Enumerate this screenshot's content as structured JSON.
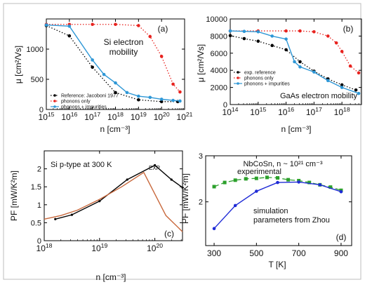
{
  "chart_data": [
    {
      "id": "a",
      "type": "line",
      "panel_label": "(a)",
      "annotation": "Si electron\nmobility",
      "xlabel": "n [cm⁻³]",
      "ylabel": "μ [cm²/Vs]",
      "xscale": "log",
      "xlim": [
        15,
        21
      ],
      "ylim": [
        0,
        1500
      ],
      "xticks": [
        15,
        16,
        17,
        18,
        19,
        20,
        21
      ],
      "xtick_labels": [
        "10^15",
        "10^16",
        "10^17",
        "10^18",
        "10^19",
        "10^20",
        "10^21"
      ],
      "yticks": [
        0,
        500,
        1000
      ],
      "ytick_labels": [
        "0",
        "500",
        "1000"
      ],
      "legend": "bottom-left",
      "series": [
        {
          "name": "Reference: Jacoboni 1977",
          "color": "#000000",
          "style": "dotted",
          "marker": "circle",
          "x": [
            15,
            16,
            17,
            18,
            19,
            20,
            20.7
          ],
          "y": [
            1390,
            1220,
            700,
            280,
            160,
            130,
            130
          ]
        },
        {
          "name": "phonons only",
          "color": "#e8231f",
          "style": "dotted",
          "marker": "circle",
          "x": [
            15,
            16,
            17,
            18,
            19,
            19.5,
            20,
            20.5,
            20.8
          ],
          "y": [
            1410,
            1410,
            1410,
            1410,
            1390,
            1210,
            880,
            420,
            290
          ]
        },
        {
          "name": "phonons + impurities",
          "color": "#2e97d6",
          "style": "solid",
          "marker": "circle",
          "x": [
            15,
            16,
            17,
            17.5,
            18,
            18.5,
            19,
            19.5,
            20,
            20.5,
            20.8
          ],
          "y": [
            1400,
            1380,
            820,
            580,
            440,
            280,
            220,
            200,
            170,
            150,
            140
          ]
        }
      ]
    },
    {
      "id": "b",
      "type": "line",
      "panel_label": "(b)",
      "annotation": "GaAs electron mobility",
      "xlabel": "n [cm⁻³]",
      "ylabel": "μ [cm²/Vs]",
      "xscale": "log",
      "xlim": [
        14,
        18.7
      ],
      "ylim": [
        0,
        10000
      ],
      "xticks": [
        14,
        15,
        16,
        17,
        18
      ],
      "xtick_labels": [
        "10^14",
        "10^15",
        "10^16",
        "10^17",
        "10^18"
      ],
      "yticks": [
        0,
        2000,
        4000,
        6000,
        8000,
        10000
      ],
      "ytick_labels": [
        "0",
        "2000",
        "4000",
        "6000",
        "8000",
        "10000"
      ],
      "legend": "bottom-left",
      "series": [
        {
          "name": "exp. reference",
          "color": "#000000",
          "style": "dotted",
          "marker": "circle",
          "x": [
            14,
            14.5,
            15,
            15.5,
            16,
            16.5,
            17,
            17.5,
            18,
            18.5
          ],
          "y": [
            8050,
            7700,
            7400,
            6900,
            6400,
            5000,
            3900,
            3000,
            2300,
            1700
          ]
        },
        {
          "name": "phonons only",
          "color": "#e8231f",
          "style": "dotted",
          "marker": "circle",
          "x": [
            14,
            15,
            16,
            16.5,
            17,
            17.5,
            17.8,
            18,
            18.3,
            18.6
          ],
          "y": [
            8600,
            8600,
            8600,
            8600,
            8500,
            8000,
            7200,
            6200,
            4500,
            3700
          ]
        },
        {
          "name": "phonons + impurities",
          "color": "#2e97d6",
          "style": "solid",
          "marker": "circle",
          "x": [
            14,
            14.5,
            15,
            15.5,
            16,
            16.3,
            16.5,
            17,
            17.5,
            18,
            18.6
          ],
          "y": [
            8600,
            8550,
            8500,
            8000,
            7650,
            5000,
            4400,
            3800,
            2800,
            2000,
            1300
          ]
        }
      ]
    },
    {
      "id": "c",
      "type": "line",
      "panel_label": "(c)",
      "annotation": "Si p-type at 300 K",
      "series_label": "EXP.",
      "xlabel": "n [cm⁻³]",
      "ylabel": "PF [mW/K²m]",
      "xscale": "log",
      "xlim": [
        18,
        20.5
      ],
      "ylim": [
        0,
        2.5
      ],
      "xticks": [
        18,
        19,
        20
      ],
      "xtick_labels": [
        "10^18",
        "10^19",
        "10^20"
      ],
      "yticks": [
        0,
        0.5,
        1,
        1.5,
        2
      ],
      "ytick_labels": [
        "0",
        "0.5",
        "1",
        "1.5",
        "2"
      ],
      "series": [
        {
          "name": "EXP.",
          "color": "#000000",
          "style": "solid",
          "marker": "dot",
          "x": [
            18.2,
            18.5,
            19.0,
            19.5,
            20.0,
            20.3,
            20.5
          ],
          "y": [
            0.6,
            0.72,
            1.1,
            1.7,
            2.1,
            1.7,
            1.48
          ]
        },
        {
          "name": "",
          "color": "#c8683c",
          "style": "solid",
          "marker": "none",
          "x": [
            18.0,
            18.3,
            18.6,
            19.0,
            19.4,
            19.8,
            20.2,
            20.5
          ],
          "y": [
            0.6,
            0.7,
            0.85,
            1.15,
            1.5,
            1.9,
            0.7,
            0.25
          ]
        }
      ]
    },
    {
      "id": "d",
      "type": "line",
      "panel_label": "(d)",
      "title": "NbCoSn, n ~ 10²¹ cm⁻³",
      "xlabel": "T [K]",
      "ylabel": "PF [mW/K²m]",
      "xlim": [
        260,
        950
      ],
      "ylim": [
        1.05,
        3.0
      ],
      "xticks": [
        300,
        500,
        700,
        900
      ],
      "xtick_labels": [
        "300",
        "500",
        "700",
        "900"
      ],
      "yticks": [
        2,
        3
      ],
      "ytick_labels": [
        "2",
        "3"
      ],
      "series": [
        {
          "name": "experimental",
          "color": "#2ca02c",
          "style": "dashed",
          "marker": "square",
          "x": [
            300,
            350,
            400,
            450,
            500,
            550,
            600,
            650,
            700,
            750,
            800,
            850,
            900
          ],
          "y": [
            2.33,
            2.42,
            2.47,
            2.5,
            2.51,
            2.53,
            2.52,
            2.48,
            2.46,
            2.42,
            2.37,
            2.32,
            2.25
          ]
        },
        {
          "name": "simulation\nparameters from Zhou",
          "color": "#1f2bd6",
          "style": "solid",
          "marker": "circle",
          "x": [
            300,
            400,
            500,
            600,
            700,
            800,
            900
          ],
          "y": [
            1.42,
            1.92,
            2.23,
            2.42,
            2.43,
            2.37,
            2.22
          ]
        }
      ]
    }
  ]
}
